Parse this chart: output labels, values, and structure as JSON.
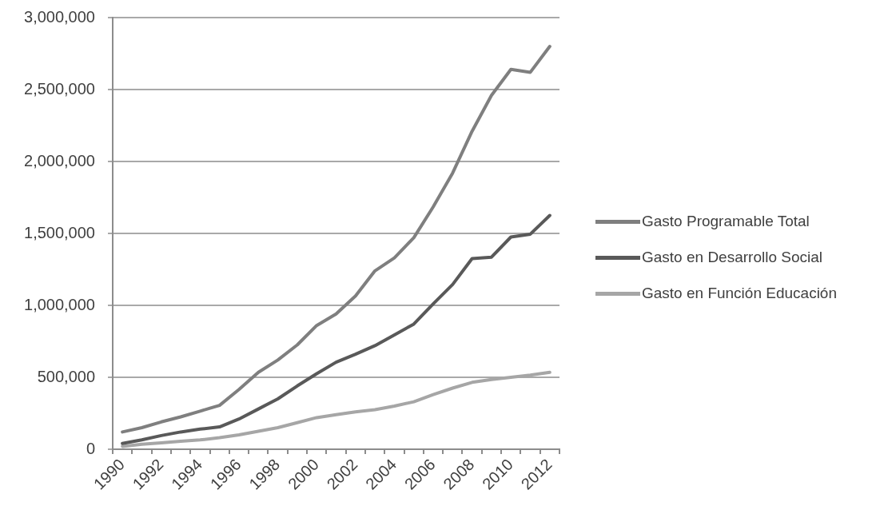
{
  "chart_data": {
    "type": "line",
    "categories": [
      "1990",
      null,
      "1992",
      null,
      "1994",
      null,
      "1996",
      null,
      "1998",
      null,
      "2000",
      null,
      "2002",
      null,
      "2004",
      null,
      "2006",
      null,
      "2008",
      null,
      "2010",
      null,
      "2012"
    ],
    "series": [
      {
        "name": "Gasto Programable Total",
        "color": "#7f7f7f",
        "values": [
          120000,
          150000,
          190000,
          225000,
          265000,
          305000,
          415000,
          535000,
          620000,
          725000,
          860000,
          940000,
          1065000,
          1240000,
          1330000,
          1470000,
          1685000,
          1920000,
          2210000,
          2460000,
          2640000,
          2620000,
          2800000
        ]
      },
      {
        "name": "Gasto en Desarrollo Social",
        "color": "#595959",
        "values": [
          40000,
          65000,
          95000,
          120000,
          140000,
          155000,
          210000,
          280000,
          350000,
          440000,
          525000,
          605000,
          660000,
          720000,
          795000,
          870000,
          1010000,
          1145000,
          1325000,
          1335000,
          1475000,
          1495000,
          1625000
        ]
      },
      {
        "name": "Gasto en Función Educación",
        "color": "#a6a6a6",
        "values": [
          20000,
          35000,
          45000,
          55000,
          65000,
          80000,
          100000,
          125000,
          150000,
          185000,
          220000,
          240000,
          260000,
          275000,
          300000,
          330000,
          380000,
          425000,
          465000,
          485000,
          500000,
          515000,
          535000
        ]
      }
    ],
    "ylim": [
      0,
      3000000
    ],
    "yticks": [
      0,
      {
        "value": 500000,
        "label": "500,000"
      },
      {
        "value": 1000000,
        "label": "1,000,000"
      },
      {
        "value": 1500000,
        "label": "1,500,000"
      },
      {
        "value": 2000000,
        "label": "2,000,000"
      },
      {
        "value": 2500000,
        "label": "2,500,000"
      },
      {
        "value": 3000000,
        "label": "3,000,000"
      }
    ],
    "grid": "y",
    "legend": "right",
    "marker": "none",
    "line_style": "solid"
  }
}
